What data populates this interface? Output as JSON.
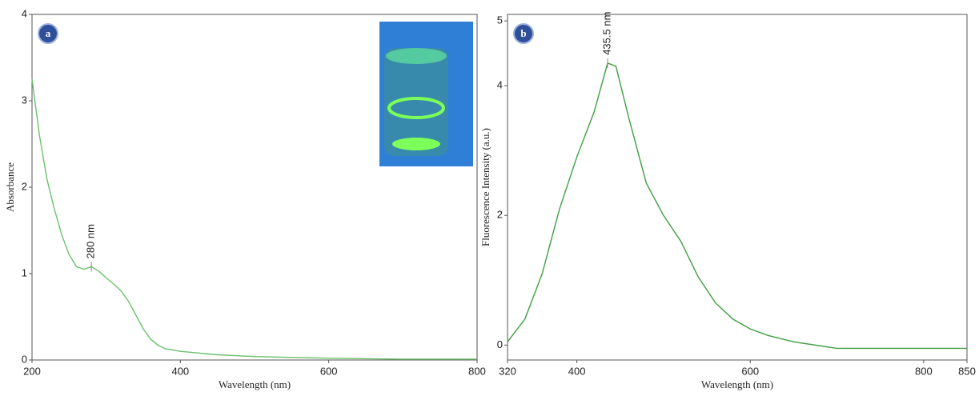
{
  "chart_data": [
    {
      "type": "line",
      "label": "a",
      "x_label": "Wavelength (nm)",
      "y_label": "Absorbance",
      "x": [
        200,
        210,
        220,
        230,
        240,
        250,
        260,
        270,
        280,
        290,
        300,
        310,
        320,
        330,
        340,
        350,
        360,
        370,
        380,
        400,
        450,
        500,
        600,
        700,
        800
      ],
      "series": [
        {
          "color": "#6cc06c",
          "values": [
            3.25,
            2.6,
            2.1,
            1.75,
            1.45,
            1.22,
            1.08,
            1.05,
            1.08,
            1.03,
            0.95,
            0.88,
            0.8,
            0.68,
            0.52,
            0.36,
            0.24,
            0.17,
            0.13,
            0.1,
            0.06,
            0.04,
            0.02,
            0.01,
            0.01
          ]
        }
      ],
      "xlim": [
        200,
        800
      ],
      "ylim": [
        0,
        4
      ],
      "xticks": [
        200,
        400,
        600,
        800
      ],
      "yticks": [
        0,
        1,
        2,
        3,
        4
      ],
      "annotations": [
        {
          "text": "280 nm",
          "x": 280,
          "y": 1.08
        }
      ]
    },
    {
      "type": "line",
      "label": "b",
      "x_label": "Wavelength (nm)",
      "y_label": "Fluorescence Intensity (a.u.)",
      "x": [
        320,
        340,
        360,
        380,
        400,
        420,
        435.5,
        445,
        460,
        480,
        500,
        520,
        540,
        560,
        580,
        600,
        620,
        650,
        700,
        750,
        800,
        850
      ],
      "series": [
        {
          "color": "#3f9e3f",
          "values": [
            0.05,
            0.4,
            1.1,
            2.1,
            2.9,
            3.6,
            4.35,
            4.3,
            3.5,
            2.5,
            2.0,
            1.6,
            1.05,
            0.65,
            0.4,
            0.25,
            0.15,
            0.05,
            -0.05,
            -0.05,
            -0.05,
            -0.05
          ]
        }
      ],
      "xlim": [
        320,
        850
      ],
      "ylim": [
        -0.23,
        5.1
      ],
      "xticks": [
        320,
        400,
        600,
        800,
        850
      ],
      "yticks": [
        0,
        2,
        4,
        5
      ],
      "annotations": [
        {
          "text": "435.5 nm",
          "x": 435.5,
          "y": 4.35
        }
      ]
    }
  ]
}
